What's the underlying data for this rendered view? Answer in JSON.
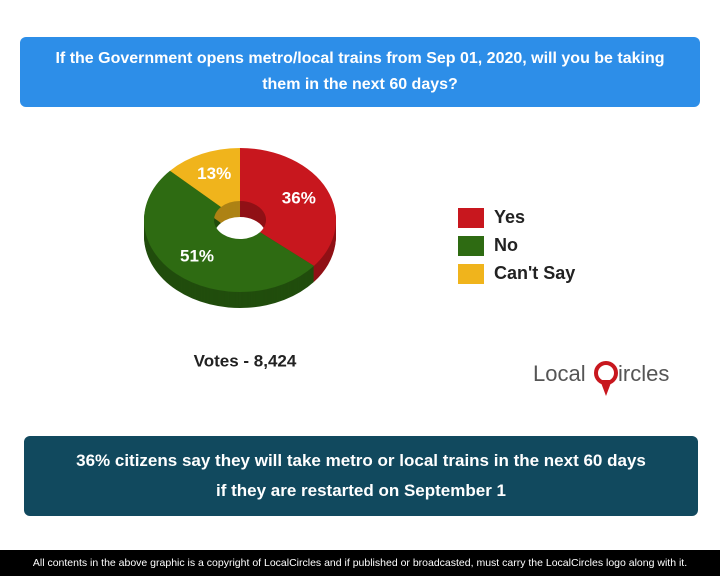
{
  "question": "If the Government opens metro/local trains from Sep 01, 2020, will you be taking them in the next 60 days?",
  "chart_data": {
    "type": "pie",
    "categories": [
      "Yes",
      "No",
      "Can't Say"
    ],
    "values": [
      36,
      51,
      13
    ],
    "value_labels": [
      "36%",
      "51%",
      "13%"
    ],
    "colors": [
      "#c8171e",
      "#2e6b12",
      "#f0b41c"
    ],
    "donut": true,
    "caption": "Votes - 8,424"
  },
  "logo": {
    "left": "Local",
    "right": "ircles"
  },
  "summary": "36% citizens say they will take metro or local trains in the next 60 days if they are restarted on September 1",
  "footer": "All contents in the above graphic is a copyright of LocalCircles and if published or broadcasted, must carry the LocalCircles logo along with it."
}
